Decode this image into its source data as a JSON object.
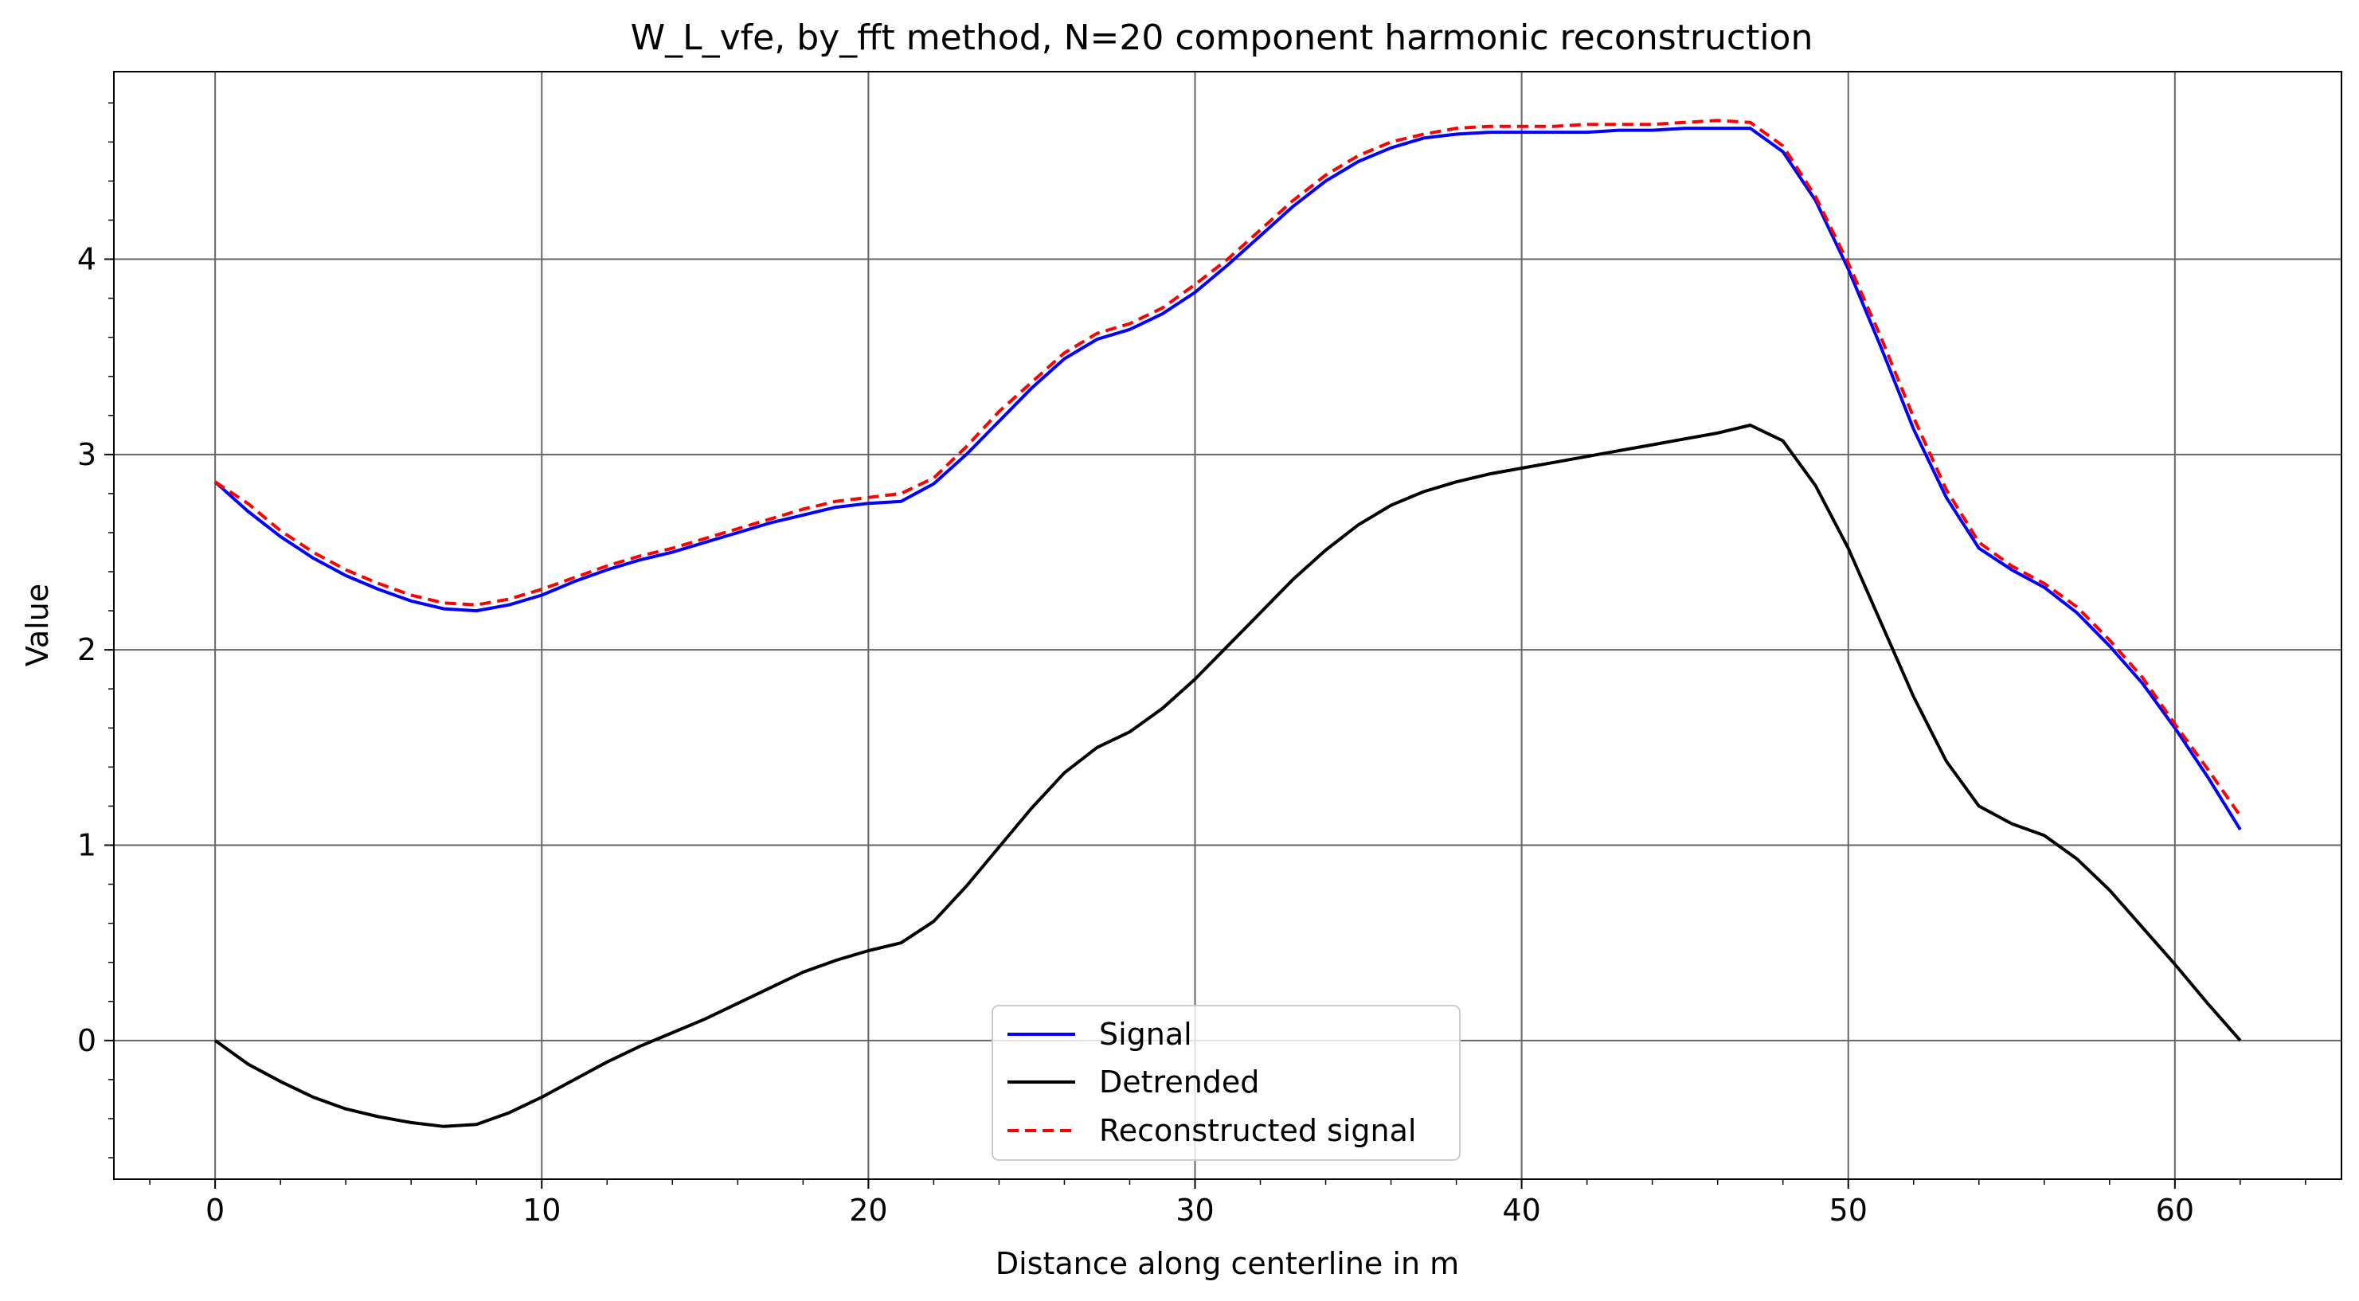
{
  "chart_data": {
    "type": "line",
    "title": "W_L_vfe, by_fft method, N=20 component harmonic reconstruction",
    "xlabel": "Distance along centerline in m",
    "ylabel": "Value",
    "xlim": [
      -3.1,
      65.1
    ],
    "ylim": [
      -0.71,
      4.96
    ],
    "xticks": [
      0,
      10,
      20,
      30,
      40,
      50,
      60
    ],
    "yticks": [
      0,
      1,
      2,
      3,
      4
    ],
    "x_minor_step": 2,
    "y_minor_step": 0.2,
    "grid": true,
    "legend_position": "lower center",
    "x": [
      0,
      1,
      2,
      3,
      4,
      5,
      6,
      7,
      8,
      9,
      10,
      11,
      12,
      13,
      14,
      15,
      16,
      17,
      18,
      19,
      20,
      21,
      22,
      23,
      24,
      25,
      26,
      27,
      28,
      29,
      30,
      31,
      32,
      33,
      34,
      35,
      36,
      37,
      38,
      39,
      40,
      41,
      42,
      43,
      44,
      45,
      46,
      47,
      48,
      49,
      50,
      51,
      52,
      53,
      54,
      55,
      56,
      57,
      58,
      59,
      60,
      61,
      62
    ],
    "series": [
      {
        "name": "Signal",
        "color": "#0000ff",
        "dash": "solid",
        "values": [
          2.86,
          2.71,
          2.58,
          2.47,
          2.38,
          2.31,
          2.25,
          2.21,
          2.2,
          2.23,
          2.28,
          2.35,
          2.41,
          2.46,
          2.5,
          2.55,
          2.6,
          2.65,
          2.69,
          2.73,
          2.75,
          2.76,
          2.85,
          3.0,
          3.17,
          3.34,
          3.49,
          3.59,
          3.64,
          3.72,
          3.83,
          3.97,
          4.12,
          4.27,
          4.4,
          4.5,
          4.57,
          4.62,
          4.64,
          4.65,
          4.65,
          4.65,
          4.65,
          4.66,
          4.66,
          4.67,
          4.67,
          4.67,
          4.55,
          4.3,
          3.95,
          3.55,
          3.13,
          2.78,
          2.52,
          2.41,
          2.32,
          2.19,
          2.02,
          1.83,
          1.6,
          1.35,
          1.08
        ]
      },
      {
        "name": "Detrended",
        "color": "#000000",
        "dash": "solid",
        "values": [
          0.0,
          -0.12,
          -0.21,
          -0.29,
          -0.35,
          -0.39,
          -0.42,
          -0.44,
          -0.43,
          -0.37,
          -0.29,
          -0.2,
          -0.11,
          -0.03,
          0.04,
          0.11,
          0.19,
          0.27,
          0.35,
          0.41,
          0.46,
          0.5,
          0.61,
          0.79,
          0.99,
          1.19,
          1.37,
          1.5,
          1.58,
          1.7,
          1.85,
          2.02,
          2.19,
          2.36,
          2.51,
          2.64,
          2.74,
          2.81,
          2.86,
          2.9,
          2.93,
          2.96,
          2.99,
          3.02,
          3.05,
          3.08,
          3.11,
          3.15,
          3.07,
          2.84,
          2.52,
          2.14,
          1.76,
          1.43,
          1.2,
          1.11,
          1.05,
          0.93,
          0.77,
          0.58,
          0.39,
          0.19,
          0.0
        ]
      },
      {
        "name": "Reconstructed signal",
        "color": "#ff0000",
        "dash": "dashed",
        "values": [
          2.86,
          2.75,
          2.61,
          2.5,
          2.41,
          2.34,
          2.28,
          2.24,
          2.23,
          2.26,
          2.31,
          2.37,
          2.43,
          2.48,
          2.52,
          2.57,
          2.62,
          2.67,
          2.72,
          2.76,
          2.78,
          2.8,
          2.88,
          3.04,
          3.22,
          3.37,
          3.52,
          3.62,
          3.67,
          3.75,
          3.87,
          4.0,
          4.15,
          4.3,
          4.43,
          4.53,
          4.6,
          4.64,
          4.67,
          4.68,
          4.68,
          4.68,
          4.69,
          4.69,
          4.69,
          4.7,
          4.71,
          4.7,
          4.58,
          4.32,
          3.98,
          3.6,
          3.19,
          2.82,
          2.55,
          2.43,
          2.34,
          2.22,
          2.05,
          1.86,
          1.62,
          1.39,
          1.15
        ]
      }
    ]
  }
}
